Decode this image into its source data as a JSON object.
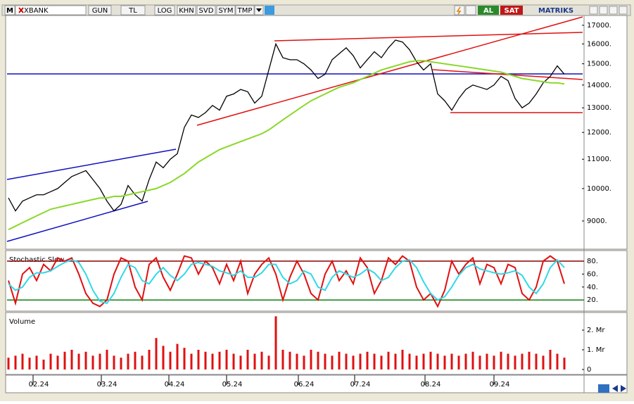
{
  "toolbar": {
    "logo": "M",
    "symbol": "XBANK",
    "buttons": [
      "GUN",
      "TL",
      "LOG",
      "KHN",
      "SVD",
      "SYM",
      "TMP"
    ],
    "buy": "AL",
    "sell": "SAT",
    "brand": "MATRIKS"
  },
  "chart_data": [
    {
      "type": "line",
      "log": true,
      "ylim": [
        8250,
        17550
      ],
      "yticks": [
        {
          "value": 9000,
          "label": "9000."
        },
        {
          "value": 10000,
          "label": "10000."
        },
        {
          "value": 11000,
          "label": "11000."
        },
        {
          "value": 12000,
          "label": "12000."
        },
        {
          "value": 13000,
          "label": "13000."
        },
        {
          "value": 14000,
          "label": "14000."
        },
        {
          "value": 15000,
          "label": "15000."
        },
        {
          "value": 16000,
          "label": "16000."
        },
        {
          "value": 17000,
          "label": "17000."
        }
      ],
      "series": [
        {
          "color": "#000000",
          "values": [
            9700,
            9300,
            9600,
            9700,
            9800,
            9800,
            9900,
            10000,
            10200,
            10400,
            10500,
            10600,
            10300,
            10000,
            9600,
            9300,
            9500,
            10100,
            9800,
            9600,
            10300,
            10900,
            10700,
            11000,
            11200,
            12200,
            12700,
            12600,
            12800,
            13100,
            12900,
            13500,
            13600,
            13800,
            13700,
            13200,
            13500,
            14700,
            16000,
            15300,
            15200,
            15200,
            15000,
            14700,
            14300,
            14500,
            15200,
            15500,
            15800,
            15400,
            14800,
            15200,
            15600,
            15300,
            15800,
            16200,
            16100,
            15700,
            15100,
            14700,
            15000,
            13600,
            13300,
            12900,
            13400,
            13800,
            14000,
            13900,
            13800,
            14000,
            14400,
            14200,
            13400,
            13000,
            13200,
            13600,
            14100,
            14400,
            14900,
            14500
          ]
        },
        {
          "color": "#8ad82a",
          "values": [
            8750,
            8850,
            8950,
            9050,
            9150,
            9250,
            9350,
            9400,
            9450,
            9500,
            9550,
            9600,
            9650,
            9700,
            9700,
            9750,
            9750,
            9800,
            9850,
            9900,
            9950,
            10000,
            10100,
            10200,
            10350,
            10500,
            10700,
            10900,
            11050,
            11200,
            11350,
            11450,
            11550,
            11650,
            11750,
            11850,
            11950,
            12100,
            12300,
            12500,
            12700,
            12900,
            13100,
            13300,
            13450,
            13600,
            13750,
            13900,
            14000,
            14100,
            14250,
            14400,
            14550,
            14700,
            14800,
            14900,
            15000,
            15100,
            15150,
            15150,
            15100,
            15050,
            15000,
            14950,
            14900,
            14850,
            14800,
            14750,
            14700,
            14650,
            14600,
            14500,
            14400,
            14300,
            14250,
            14200,
            14150,
            14100,
            14100,
            14050
          ]
        }
      ]
    },
    {
      "type": "line",
      "title": "Stochastic Slow",
      "ylim": [
        5,
        92
      ],
      "yticks": [
        {
          "value": 20,
          "label": "20."
        },
        {
          "value": 40,
          "label": "40."
        },
        {
          "value": 60,
          "label": "60."
        },
        {
          "value": 80,
          "label": "80."
        }
      ],
      "series": [
        {
          "color": "#e01010",
          "values": [
            50,
            15,
            60,
            70,
            50,
            75,
            65,
            85,
            80,
            85,
            60,
            30,
            15,
            10,
            20,
            60,
            85,
            80,
            40,
            20,
            75,
            85,
            55,
            35,
            60,
            88,
            85,
            60,
            80,
            70,
            45,
            75,
            50,
            80,
            30,
            60,
            75,
            85,
            60,
            20,
            55,
            80,
            60,
            30,
            20,
            60,
            80,
            50,
            65,
            45,
            85,
            70,
            30,
            50,
            85,
            75,
            88,
            80,
            40,
            20,
            30,
            10,
            35,
            80,
            60,
            75,
            85,
            45,
            75,
            70,
            45,
            75,
            70,
            30,
            20,
            40,
            80,
            88,
            80,
            45
          ]
        },
        {
          "color": "#30d8e8",
          "values": [
            45,
            35,
            40,
            55,
            62,
            62,
            65,
            72,
            78,
            82,
            78,
            60,
            35,
            18,
            15,
            30,
            55,
            75,
            70,
            50,
            45,
            60,
            70,
            58,
            50,
            60,
            75,
            78,
            75,
            72,
            65,
            62,
            58,
            65,
            55,
            55,
            62,
            75,
            75,
            55,
            45,
            50,
            65,
            60,
            40,
            35,
            55,
            65,
            60,
            55,
            60,
            68,
            62,
            50,
            55,
            70,
            80,
            82,
            70,
            48,
            30,
            20,
            25,
            40,
            58,
            70,
            75,
            68,
            65,
            62,
            60,
            62,
            65,
            58,
            40,
            30,
            45,
            70,
            82,
            70
          ]
        }
      ]
    },
    {
      "type": "bar",
      "title": "Volume",
      "color": "#e01010",
      "ylim": [
        -0.18,
        2.75
      ],
      "yticks": [
        0,
        {
          "value": 1,
          "label": "1. Mr"
        },
        {
          "value": 2,
          "label": "2. Mr"
        }
      ],
      "values": [
        0.6,
        0.7,
        0.8,
        0.6,
        0.7,
        0.5,
        0.8,
        0.7,
        0.9,
        1.0,
        0.8,
        0.9,
        0.7,
        0.8,
        1.0,
        0.7,
        0.6,
        0.8,
        0.9,
        0.7,
        1.0,
        1.6,
        1.2,
        0.9,
        1.3,
        1.1,
        0.8,
        1.0,
        0.9,
        0.8,
        0.9,
        1.0,
        0.8,
        0.7,
        1.0,
        0.8,
        0.9,
        0.7,
        2.7,
        1.0,
        0.9,
        0.8,
        0.7,
        1.0,
        0.9,
        0.8,
        0.7,
        0.9,
        0.8,
        0.7,
        0.8,
        0.9,
        0.8,
        0.7,
        0.9,
        0.8,
        1.0,
        0.8,
        0.7,
        0.8,
        0.9,
        0.8,
        0.7,
        0.8,
        0.7,
        0.8,
        0.9,
        0.7,
        0.8,
        0.7,
        0.9,
        0.8,
        0.7,
        0.8,
        0.9,
        0.8,
        0.7,
        1.0,
        0.8,
        0.6
      ],
      "xlim": [
        0,
        79
      ],
      "xticks": [
        {
          "value": 4.3,
          "label": "02.24"
        },
        {
          "value": 14,
          "label": "03.24"
        },
        {
          "value": 23.6,
          "label": "04.24"
        },
        {
          "value": 31.8,
          "label": "05.24"
        },
        {
          "value": 42,
          "label": "06.24"
        },
        {
          "value": 50,
          "label": "07.24"
        },
        {
          "value": 60,
          "label": "08.24"
        },
        {
          "value": 69.8,
          "label": "09.24"
        }
      ]
    }
  ]
}
